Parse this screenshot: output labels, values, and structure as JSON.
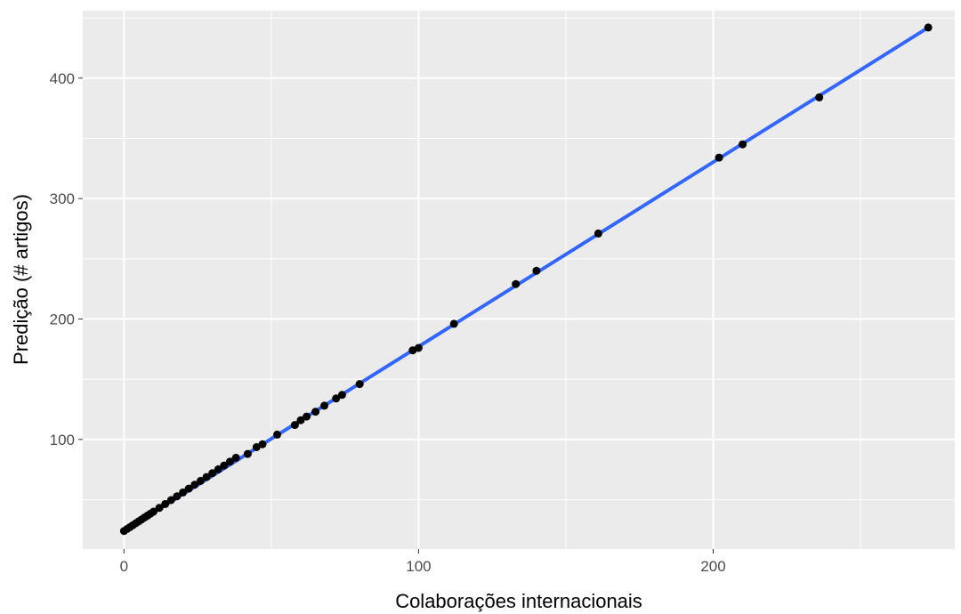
{
  "chart_data": {
    "type": "scatter",
    "title": "",
    "xlabel": "Colaborações internacionais",
    "ylabel": "Predição (# artigos)",
    "xlim": [
      -14,
      282
    ],
    "ylim": [
      9,
      456
    ],
    "x_ticks": [
      0,
      100,
      200
    ],
    "y_ticks": [
      100,
      200,
      300,
      400
    ],
    "x_tick_labels": [
      "0",
      "100",
      "200"
    ],
    "y_tick_labels": [
      "100",
      "200",
      "300",
      "400"
    ],
    "grid": true,
    "background_color": "#ebebeb",
    "point_color": "#000000",
    "line_color": "#3366ff",
    "series": [
      {
        "kind": "points",
        "x": [
          0,
          1,
          2,
          3,
          4,
          5,
          6,
          7,
          8,
          9,
          10,
          12,
          14,
          16,
          18,
          20,
          22,
          24,
          26,
          28,
          30,
          32,
          34,
          36,
          38,
          42,
          45,
          47,
          52,
          58,
          60,
          62,
          65,
          68,
          72,
          74,
          80,
          98,
          100,
          112,
          133,
          140,
          161,
          202,
          210,
          236,
          273
        ],
        "y": [
          24,
          25.6,
          27.2,
          28.8,
          30.4,
          32,
          33.6,
          35.2,
          36.8,
          38.4,
          40,
          43.2,
          46.4,
          49.6,
          52.8,
          56,
          59.2,
          62.4,
          65.6,
          68.8,
          72,
          75.2,
          78.4,
          81.6,
          84.8,
          88,
          93.6,
          96,
          104,
          112,
          116,
          119,
          123,
          128,
          134,
          137,
          146,
          174,
          176,
          196,
          229,
          240,
          271,
          334,
          345,
          384,
          442
        ]
      },
      {
        "kind": "fit-line",
        "x": [
          0,
          273
        ],
        "y": [
          24,
          442
        ]
      }
    ]
  }
}
